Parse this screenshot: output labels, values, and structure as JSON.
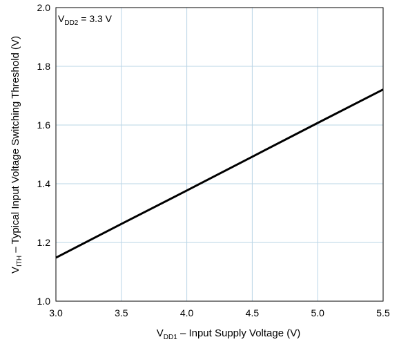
{
  "chart_data": {
    "type": "line",
    "x_ticks": [
      "3.0",
      "3.5",
      "4.0",
      "4.5",
      "5.0",
      "5.5"
    ],
    "y_ticks": [
      "1.0",
      "1.2",
      "1.4",
      "1.6",
      "1.8",
      "2.0"
    ],
    "xlim": [
      3.0,
      5.5
    ],
    "ylim": [
      1.0,
      2.0
    ],
    "grid": true,
    "xlabel": {
      "main": "V",
      "sub": "DD1",
      "rest": " – Input Supply Voltage (V)"
    },
    "ylabel": {
      "main": "V",
      "sub": "ITH",
      "rest": " – Typical Input Voltage Switching Threshold (V)"
    },
    "annotation": {
      "main": "V",
      "sub": "DD2",
      "rest": " = 3.3 V"
    },
    "series": [
      {
        "x": [
          3.0,
          3.5,
          4.0,
          4.5,
          5.0,
          5.5
        ],
        "y": [
          1.148,
          1.263,
          1.377,
          1.492,
          1.607,
          1.721
        ]
      }
    ],
    "colors": {
      "line": "#000000",
      "grid": "#b9d4e6",
      "frame": "#000000"
    }
  }
}
